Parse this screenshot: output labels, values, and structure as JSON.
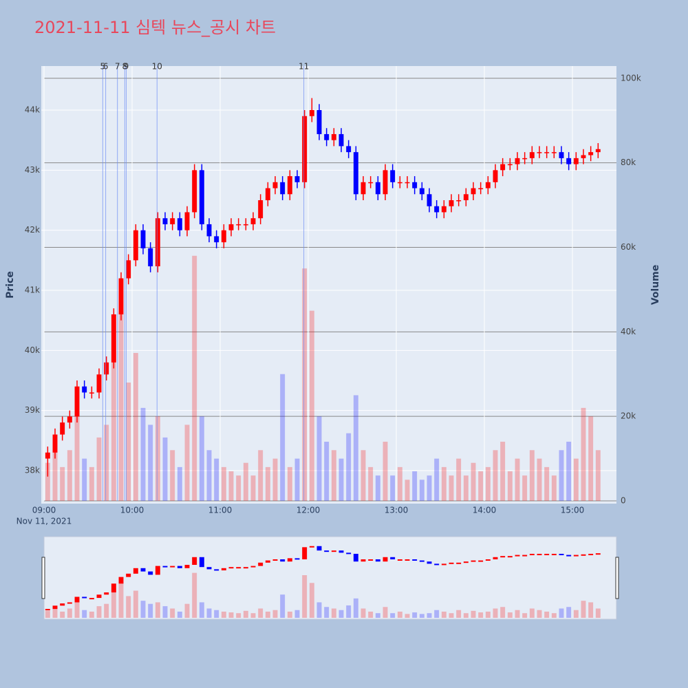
{
  "chart_data": {
    "type": "candlestick",
    "title": "2021-11-11 심텍 뉴스_공시 차트",
    "x": [
      "09:00",
      "09:05",
      "09:10",
      "09:15",
      "09:20",
      "09:25",
      "09:30",
      "09:35",
      "09:40",
      "09:45",
      "09:50",
      "09:55",
      "10:00",
      "10:05",
      "10:10",
      "10:15",
      "10:20",
      "10:25",
      "10:30",
      "10:35",
      "10:40",
      "10:45",
      "10:50",
      "10:55",
      "11:00",
      "11:05",
      "11:10",
      "11:15",
      "11:20",
      "11:25",
      "11:30",
      "11:35",
      "11:40",
      "11:45",
      "11:50",
      "11:55",
      "12:00",
      "12:05",
      "12:10",
      "12:15",
      "12:20",
      "12:25",
      "12:30",
      "12:35",
      "12:40",
      "12:45",
      "12:50",
      "12:55",
      "13:00",
      "13:05",
      "13:10",
      "13:15",
      "13:20",
      "13:25",
      "13:30",
      "13:35",
      "13:40",
      "13:45",
      "13:50",
      "13:55",
      "14:00",
      "14:05",
      "14:10",
      "14:15",
      "14:20",
      "14:25",
      "14:30",
      "14:35",
      "14:40",
      "14:45",
      "14:50",
      "14:55",
      "15:00",
      "15:05",
      "15:10",
      "15:15"
    ],
    "open": [
      38200,
      38300,
      38600,
      38800,
      38900,
      39400,
      39300,
      39300,
      39600,
      39800,
      40600,
      41200,
      41500,
      42000,
      41700,
      41400,
      42200,
      42100,
      42200,
      42000,
      42300,
      43000,
      42100,
      41900,
      41800,
      42000,
      42100,
      42100,
      42100,
      42200,
      42500,
      42700,
      42800,
      42600,
      42900,
      42800,
      43900,
      44000,
      43600,
      43500,
      43600,
      43400,
      43300,
      42600,
      42800,
      42800,
      42600,
      43000,
      42800,
      42800,
      42800,
      42700,
      42600,
      42400,
      42300,
      42400,
      42500,
      42500,
      42600,
      42700,
      42700,
      42800,
      43000,
      43100,
      43100,
      43200,
      43200,
      43300,
      43300,
      43300,
      43300,
      43200,
      43100,
      43200,
      43250,
      43300
    ],
    "high": [
      38400,
      38700,
      38900,
      39000,
      39500,
      39500,
      39400,
      39700,
      39900,
      40700,
      41300,
      41600,
      42100,
      42100,
      41800,
      42300,
      42300,
      42300,
      42300,
      42400,
      43100,
      43100,
      42200,
      42000,
      42100,
      42200,
      42200,
      42200,
      42300,
      42600,
      42800,
      42900,
      42900,
      43000,
      43000,
      44000,
      44200,
      44100,
      43700,
      43700,
      43700,
      43500,
      43400,
      42900,
      42900,
      42900,
      43100,
      43100,
      42900,
      42900,
      42900,
      42800,
      42700,
      42500,
      42500,
      42600,
      42600,
      42700,
      42800,
      42800,
      42900,
      43100,
      43200,
      43200,
      43300,
      43300,
      43400,
      43400,
      43400,
      43400,
      43400,
      43300,
      43300,
      43350,
      43400,
      43450
    ],
    "low": [
      37900,
      38200,
      38500,
      38700,
      38800,
      39200,
      39200,
      39200,
      39500,
      39700,
      40500,
      41100,
      41400,
      41600,
      41300,
      41300,
      42000,
      42000,
      41900,
      41900,
      42200,
      42000,
      41800,
      41700,
      41700,
      41900,
      42000,
      42000,
      42000,
      42100,
      42400,
      42600,
      42500,
      42500,
      42700,
      42700,
      43800,
      43500,
      43400,
      43400,
      43300,
      43200,
      42500,
      42500,
      42700,
      42500,
      42500,
      42700,
      42700,
      42700,
      42600,
      42500,
      42300,
      42200,
      42200,
      42300,
      42400,
      42400,
      42500,
      42600,
      42600,
      42700,
      42900,
      43000,
      43000,
      43100,
      43100,
      43200,
      43200,
      43200,
      43100,
      43000,
      43000,
      43100,
      43150,
      43200
    ],
    "close": [
      38300,
      38600,
      38800,
      38900,
      39400,
      39300,
      39300,
      39600,
      39800,
      40600,
      41200,
      41500,
      42000,
      41700,
      41400,
      42200,
      42100,
      42200,
      42000,
      42300,
      43000,
      42100,
      41900,
      41800,
      42000,
      42100,
      42100,
      42100,
      42200,
      42500,
      42700,
      42800,
      42600,
      42900,
      42800,
      43900,
      44000,
      43600,
      43500,
      43600,
      43400,
      43300,
      42600,
      42800,
      42800,
      42600,
      43000,
      42800,
      42800,
      42800,
      42700,
      42600,
      42400,
      42300,
      42400,
      42500,
      42500,
      42600,
      42700,
      42700,
      42800,
      43000,
      43100,
      43100,
      43200,
      43200,
      43300,
      43300,
      43300,
      43300,
      43200,
      43100,
      43200,
      43250,
      43300,
      43350
    ],
    "volume": [
      9000,
      14000,
      8000,
      12000,
      20000,
      10000,
      8000,
      15000,
      18000,
      38000,
      45000,
      28000,
      35000,
      22000,
      18000,
      20000,
      15000,
      12000,
      8000,
      18000,
      58000,
      20000,
      12000,
      10000,
      8000,
      7000,
      6000,
      9000,
      6000,
      12000,
      8000,
      10000,
      30000,
      8000,
      10000,
      55000,
      45000,
      20000,
      14000,
      12000,
      10000,
      16000,
      25000,
      12000,
      8000,
      6000,
      14000,
      6000,
      8000,
      5000,
      7000,
      5000,
      6000,
      10000,
      8000,
      6000,
      10000,
      6000,
      9000,
      7000,
      8000,
      12000,
      14000,
      7000,
      10000,
      6000,
      12000,
      10000,
      8000,
      6000,
      12000,
      14000,
      10000,
      22000,
      20000,
      12000
    ],
    "increasing_color": "#ff0000",
    "decreasing_color": "#0000ff",
    "xlim": [
      "09:00",
      "15:30"
    ],
    "xticks": [
      "09:00",
      "10:00",
      "11:00",
      "12:00",
      "13:00",
      "14:00",
      "15:00"
    ],
    "x_sublabel": "Nov 11, 2021",
    "ylabel": "Price",
    "y2label": "Volume",
    "ylim": [
      37496,
      44733
    ],
    "yticks": [
      {
        "value": 38000,
        "label": "38k"
      },
      {
        "value": 39000,
        "label": "39k"
      },
      {
        "value": 40000,
        "label": "40k"
      },
      {
        "value": 41000,
        "label": "41k"
      },
      {
        "value": 42000,
        "label": "42k"
      },
      {
        "value": 43000,
        "label": "43k"
      },
      {
        "value": 44000,
        "label": "44k"
      }
    ],
    "y2lim": [
      0,
      102900
    ],
    "y2ticks": [
      0,
      {
        "value": 20000,
        "label": "20k"
      },
      {
        "value": 40000,
        "label": "40k"
      },
      {
        "value": 60000,
        "label": "60k"
      },
      {
        "value": 80000,
        "label": "80k"
      },
      {
        "value": 100000,
        "label": "100k"
      }
    ],
    "annotations": [
      {
        "x": "09:40",
        "text": "5"
      },
      {
        "x": "09:42",
        "text": "6"
      },
      {
        "x": "09:50",
        "text": "7"
      },
      {
        "x": "09:55",
        "text": "8"
      },
      {
        "x": "09:56",
        "text": "9"
      },
      {
        "x": "10:17",
        "text": "10"
      },
      {
        "x": "11:57",
        "text": "11"
      }
    ],
    "rangeslider": true
  }
}
